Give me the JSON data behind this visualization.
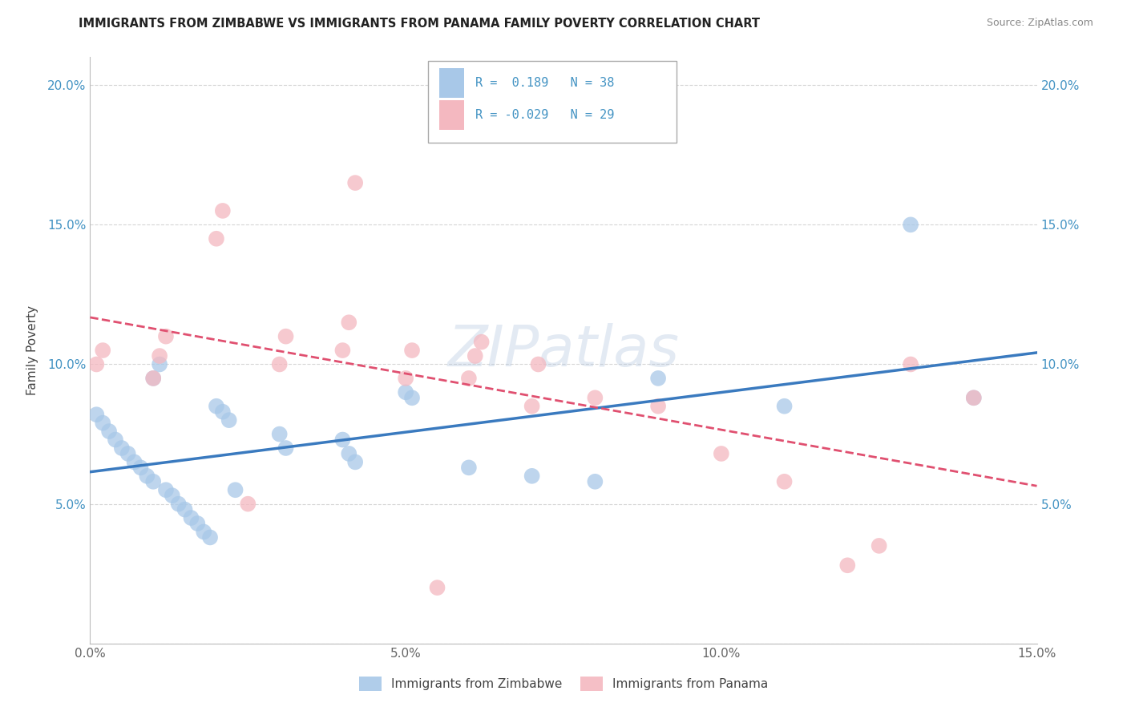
{
  "title": "IMMIGRANTS FROM ZIMBABWE VS IMMIGRANTS FROM PANAMA FAMILY POVERTY CORRELATION CHART",
  "source": "Source: ZipAtlas.com",
  "ylabel": "Family Poverty",
  "xlim": [
    0.0,
    0.15
  ],
  "ylim": [
    0.0,
    0.21
  ],
  "xticks": [
    0.0,
    0.05,
    0.1,
    0.15
  ],
  "xtick_labels": [
    "0.0%",
    "5.0%",
    "10.0%",
    "15.0%"
  ],
  "yticks": [
    0.0,
    0.05,
    0.1,
    0.15,
    0.2
  ],
  "ytick_labels": [
    "",
    "5.0%",
    "10.0%",
    "15.0%",
    "20.0%"
  ],
  "zimbabwe_color": "#a8c8e8",
  "panama_color": "#f4b8c0",
  "zimbabwe_line_color": "#3a7abf",
  "panama_line_color": "#e05070",
  "legend_text_color": "#4393c3",
  "tick_color": "#4393c3",
  "zimbabwe_R": 0.189,
  "zimbabwe_N": 38,
  "panama_R": -0.029,
  "panama_N": 29,
  "watermark": "ZIPatlas",
  "zimbabwe_x": [
    0.001,
    0.002,
    0.003,
    0.004,
    0.005,
    0.006,
    0.007,
    0.008,
    0.009,
    0.01,
    0.01,
    0.011,
    0.012,
    0.013,
    0.014,
    0.015,
    0.016,
    0.017,
    0.018,
    0.019,
    0.02,
    0.021,
    0.022,
    0.023,
    0.03,
    0.031,
    0.04,
    0.041,
    0.042,
    0.05,
    0.051,
    0.06,
    0.07,
    0.08,
    0.09,
    0.11,
    0.13,
    0.14
  ],
  "zimbabwe_y": [
    0.082,
    0.079,
    0.076,
    0.073,
    0.07,
    0.068,
    0.065,
    0.063,
    0.06,
    0.095,
    0.058,
    0.1,
    0.055,
    0.053,
    0.05,
    0.048,
    0.045,
    0.043,
    0.04,
    0.038,
    0.085,
    0.083,
    0.08,
    0.055,
    0.075,
    0.07,
    0.073,
    0.068,
    0.065,
    0.09,
    0.088,
    0.063,
    0.06,
    0.058,
    0.095,
    0.085,
    0.15,
    0.088
  ],
  "panama_x": [
    0.001,
    0.002,
    0.01,
    0.011,
    0.012,
    0.02,
    0.021,
    0.03,
    0.031,
    0.04,
    0.041,
    0.042,
    0.05,
    0.051,
    0.06,
    0.061,
    0.062,
    0.07,
    0.071,
    0.08,
    0.09,
    0.1,
    0.11,
    0.12,
    0.125,
    0.13,
    0.14,
    0.025,
    0.055
  ],
  "panama_y": [
    0.1,
    0.105,
    0.095,
    0.103,
    0.11,
    0.145,
    0.155,
    0.1,
    0.11,
    0.105,
    0.115,
    0.165,
    0.095,
    0.105,
    0.095,
    0.103,
    0.108,
    0.085,
    0.1,
    0.088,
    0.085,
    0.068,
    0.058,
    0.028,
    0.035,
    0.1,
    0.088,
    0.05,
    0.02
  ]
}
